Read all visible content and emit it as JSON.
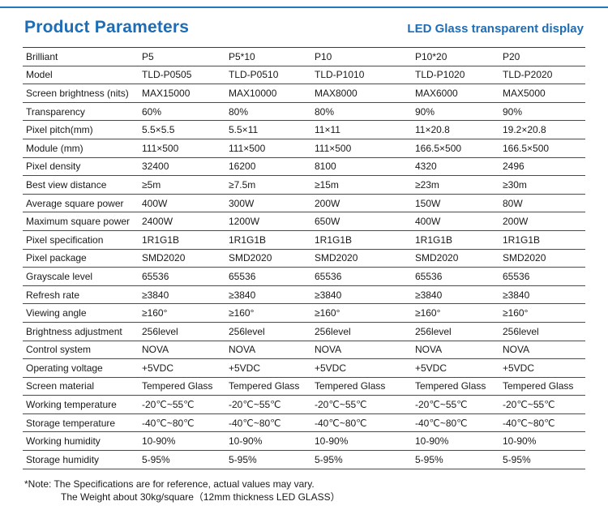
{
  "colors": {
    "accent": "#1d6db6",
    "rule": "#4a4a4a"
  },
  "header": {
    "title": "Product Parameters",
    "subtitle": "LED Glass transparent display"
  },
  "table": {
    "rows": [
      {
        "label": "Brilliant",
        "values": [
          "P5",
          "P5*10",
          "P10",
          "P10*20",
          "P20"
        ]
      },
      {
        "label": "Model",
        "values": [
          "TLD-P0505",
          "TLD-P0510",
          "TLD-P1010",
          "TLD-P1020",
          "TLD-P2020"
        ]
      },
      {
        "label": "Screen brightness (nits)",
        "values": [
          "MAX15000",
          "MAX10000",
          "MAX8000",
          "MAX6000",
          "MAX5000"
        ]
      },
      {
        "label": "Transparency",
        "values": [
          "60%",
          "80%",
          "80%",
          "90%",
          "90%"
        ]
      },
      {
        "label": "Pixel pitch(mm)",
        "values": [
          "5.5×5.5",
          "5.5×11",
          "11×11",
          "11×20.8",
          "19.2×20.8"
        ]
      },
      {
        "label": "Module (mm)",
        "values": [
          "111×500",
          "111×500",
          "111×500",
          "166.5×500",
          "166.5×500"
        ]
      },
      {
        "label": "Pixel density",
        "values": [
          "32400",
          "16200",
          "8100",
          "4320",
          "2496"
        ]
      },
      {
        "label": "Best view distance",
        "values": [
          "≥5m",
          "≥7.5m",
          "≥15m",
          "≥23m",
          "≥30m"
        ]
      },
      {
        "label": "Average square power",
        "values": [
          "400W",
          "300W",
          "200W",
          "150W",
          "80W"
        ]
      },
      {
        "label": "Maximum square power",
        "values": [
          "2400W",
          "1200W",
          "650W",
          "400W",
          "200W"
        ]
      },
      {
        "label": "Pixel specification",
        "values": [
          "1R1G1B",
          "1R1G1B",
          "1R1G1B",
          "1R1G1B",
          "1R1G1B"
        ]
      },
      {
        "label": "Pixel package",
        "values": [
          "SMD2020",
          "SMD2020",
          "SMD2020",
          "SMD2020",
          "SMD2020"
        ]
      },
      {
        "label": "Grayscale level",
        "values": [
          "65536",
          "65536",
          "65536",
          "65536",
          "65536"
        ]
      },
      {
        "label": "Refresh rate",
        "values": [
          "≥3840",
          "≥3840",
          "≥3840",
          "≥3840",
          "≥3840"
        ]
      },
      {
        "label": "Viewing angle",
        "values": [
          "≥160°",
          "≥160°",
          "≥160°",
          "≥160°",
          "≥160°"
        ]
      },
      {
        "label": "Brightness adjustment",
        "values": [
          "256level",
          "256level",
          "256level",
          "256level",
          "256level"
        ]
      },
      {
        "label": "Control system",
        "values": [
          "NOVA",
          "NOVA",
          "NOVA",
          "NOVA",
          "NOVA"
        ]
      },
      {
        "label": "Operating voltage",
        "values": [
          "+5VDC",
          "+5VDC",
          "+5VDC",
          "+5VDC",
          "+5VDC"
        ]
      },
      {
        "label": "Screen material",
        "values": [
          "Tempered Glass",
          "Tempered Glass",
          "Tempered Glass",
          "Tempered Glass",
          "Tempered Glass"
        ]
      },
      {
        "label": "Working temperature",
        "values": [
          "-20℃~55℃",
          "-20℃~55℃",
          "-20℃~55℃",
          "-20℃~55℃",
          "-20℃~55℃"
        ]
      },
      {
        "label": "Storage temperature",
        "values": [
          "-40℃~80℃",
          "-40℃~80℃",
          "-40℃~80℃",
          "-40℃~80℃",
          "-40℃~80℃"
        ]
      },
      {
        "label": "Working humidity",
        "values": [
          "10-90%",
          "10-90%",
          "10-90%",
          "10-90%",
          "10-90%"
        ]
      },
      {
        "label": "Storage humidity",
        "values": [
          "5-95%",
          "5-95%",
          "5-95%",
          "5-95%",
          "5-95%"
        ]
      }
    ]
  },
  "notes": {
    "line1": "*Note: The Specifications are for reference, actual values may vary.",
    "line2": "The Weight about 30kg/square（12mm thickness LED GLASS）"
  }
}
